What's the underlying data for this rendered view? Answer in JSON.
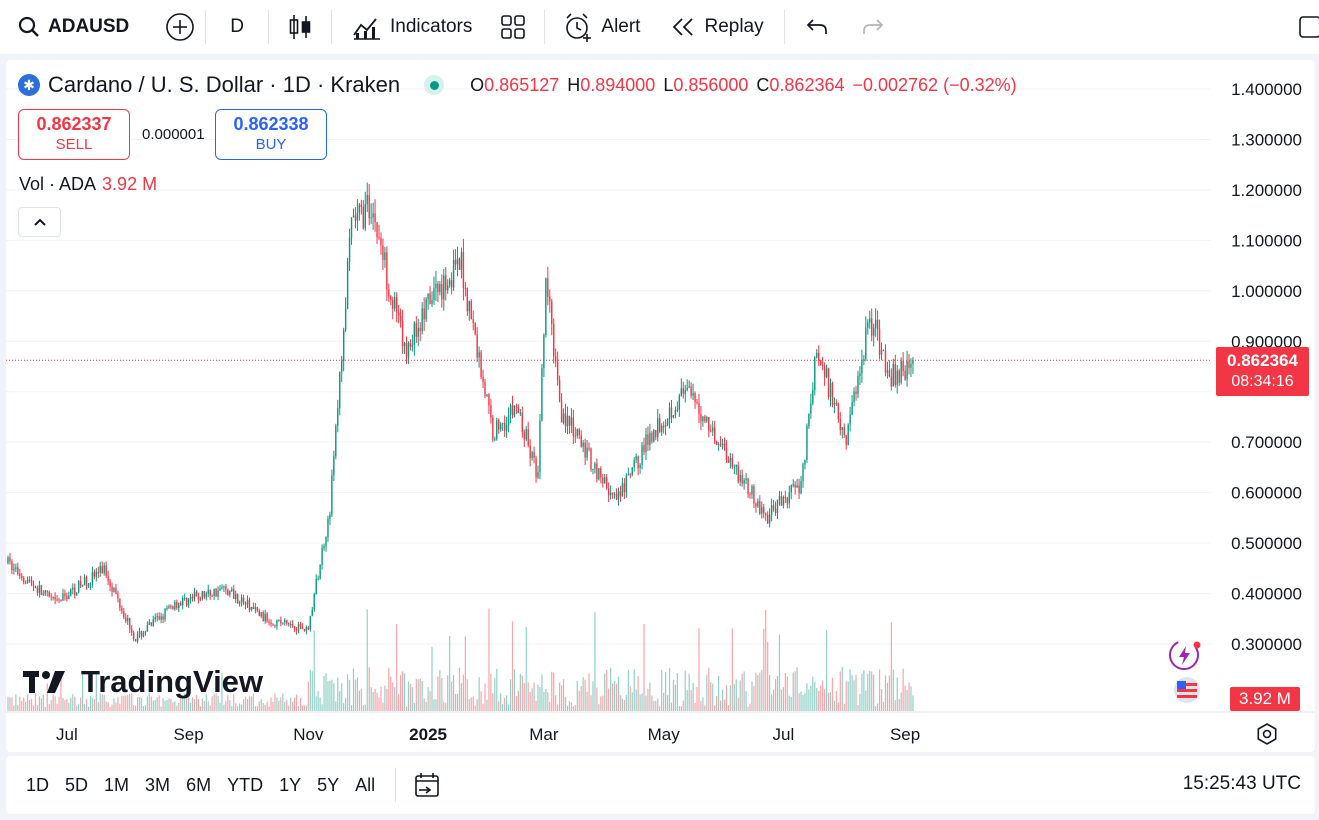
{
  "toolbar": {
    "symbol": "ADAUSD",
    "interval": "D",
    "indicators_label": "Indicators",
    "alert_label": "Alert",
    "replay_label": "Replay"
  },
  "legend": {
    "title": "Cardano / U. S. Dollar · 1D · Kraken",
    "open_key": "O",
    "open": "0.865127",
    "high_key": "H",
    "high": "0.894000",
    "low_key": "L",
    "low": "0.856000",
    "close_key": "C",
    "close": "0.862364",
    "change": "−0.002762 (−0.32%)"
  },
  "trade": {
    "sell_price": "0.862337",
    "sell_label": "SELL",
    "spread": "0.000001",
    "buy_price": "0.862338",
    "buy_label": "BUY"
  },
  "volume": {
    "label": "Vol · ADA",
    "value": "3.92 M"
  },
  "price_scale": {
    "ticks": [
      "1.400000",
      "1.300000",
      "1.200000",
      "1.100000",
      "1.000000",
      "0.900000",
      "0.700000",
      "0.600000",
      "0.500000",
      "0.400000",
      "0.300000"
    ],
    "current_price": "0.862364",
    "countdown": "08:34:16",
    "volume_tag": "3.92 M"
  },
  "time_axis": [
    "Jul",
    "Sep",
    "Nov",
    "2025",
    "Mar",
    "May",
    "Jul",
    "Sep"
  ],
  "branding": "TradingView",
  "bottom": {
    "ranges": [
      "1D",
      "5D",
      "1M",
      "3M",
      "6M",
      "YTD",
      "1Y",
      "5Y",
      "All"
    ],
    "clock": "15:25:43 UTC"
  },
  "colors": {
    "up": "#089981",
    "down": "#f23645",
    "accent": "#2962ff"
  },
  "chart_data": {
    "type": "candlestick",
    "anchors": [
      [
        "2024-06-01",
        0.46
      ],
      [
        "2024-06-25",
        0.38
      ],
      [
        "2024-07-20",
        0.45
      ],
      [
        "2024-08-05",
        0.31
      ],
      [
        "2024-08-25",
        0.38
      ],
      [
        "2024-09-20",
        0.41
      ],
      [
        "2024-10-10",
        0.35
      ],
      [
        "2024-11-01",
        0.33
      ],
      [
        "2024-11-12",
        0.57
      ],
      [
        "2024-11-23",
        1.13
      ],
      [
        "2024-12-03",
        1.17
      ],
      [
        "2024-12-20",
        0.88
      ],
      [
        "2025-01-05",
        1.0
      ],
      [
        "2025-01-18",
        1.05
      ],
      [
        "2025-02-03",
        0.72
      ],
      [
        "2025-02-15",
        0.77
      ],
      [
        "2025-02-26",
        0.63
      ],
      [
        "2025-03-02",
        1.02
      ],
      [
        "2025-03-10",
        0.76
      ],
      [
        "2025-04-07",
        0.58
      ],
      [
        "2025-04-25",
        0.72
      ],
      [
        "2025-05-12",
        0.8
      ],
      [
        "2025-05-25",
        0.73
      ],
      [
        "2025-06-22",
        0.55
      ],
      [
        "2025-07-10",
        0.62
      ],
      [
        "2025-07-18",
        0.88
      ],
      [
        "2025-08-02",
        0.71
      ],
      [
        "2025-08-14",
        0.95
      ],
      [
        "2025-08-25",
        0.83
      ],
      [
        "2025-09-05",
        0.86
      ]
    ],
    "current_price": 0.862364,
    "ylim": [
      0.17,
      1.47
    ]
  }
}
